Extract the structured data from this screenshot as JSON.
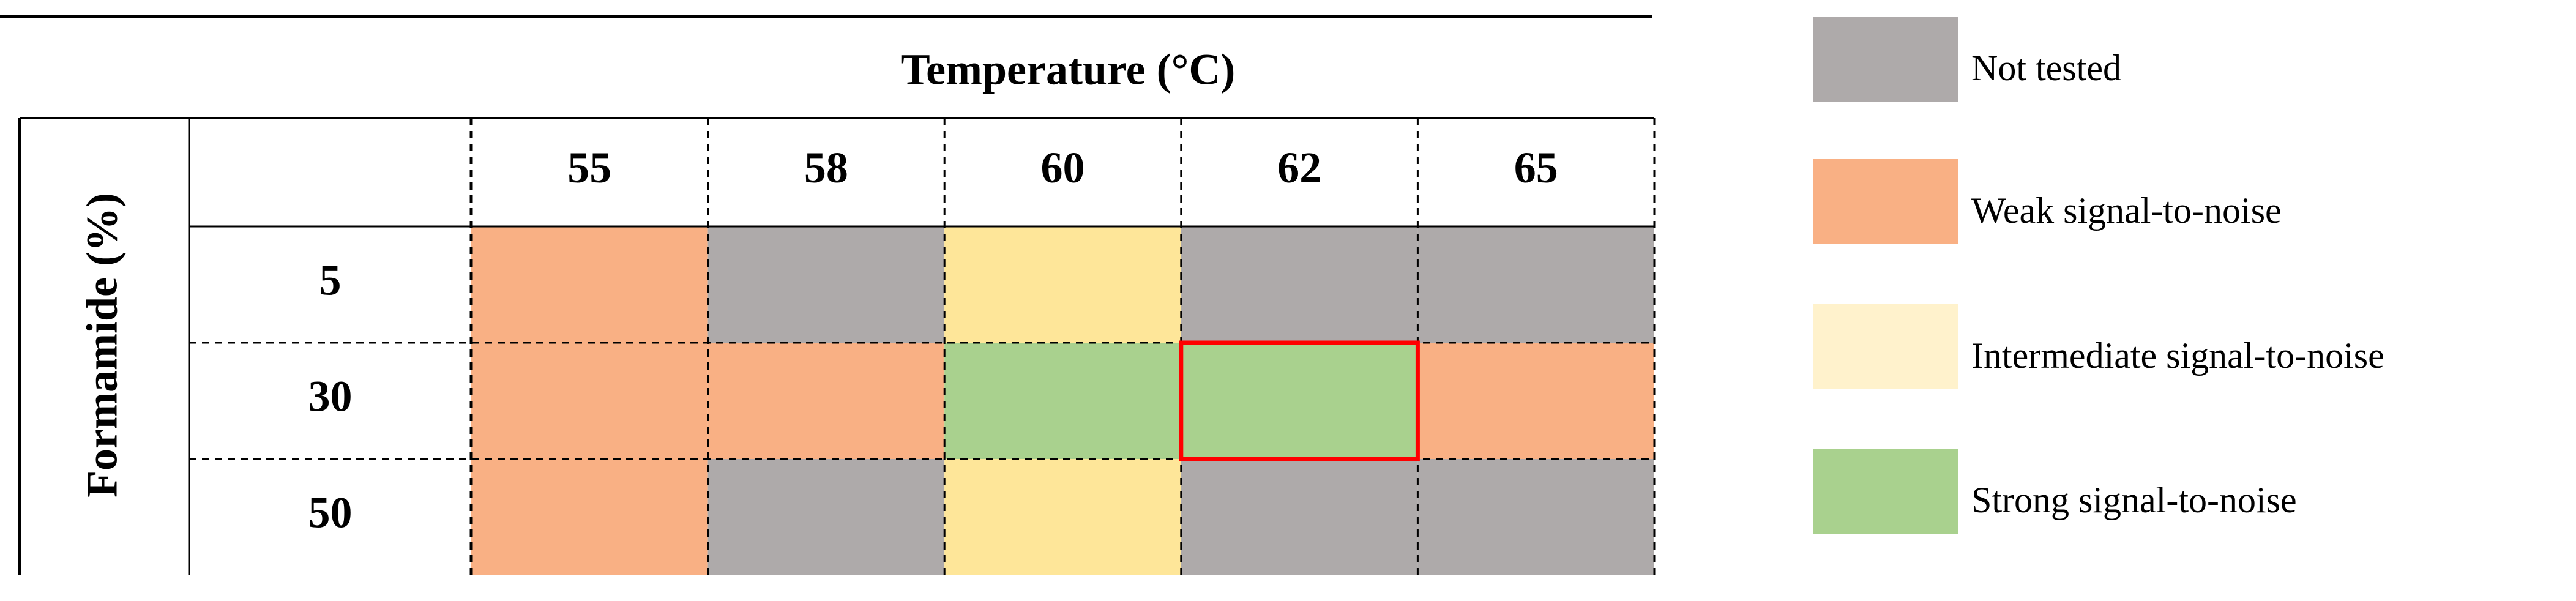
{
  "table": {
    "title": "Temperature (°C)",
    "row_axis_label": "Formamide (%)",
    "columns": [
      "55",
      "58",
      "60",
      "62",
      "65"
    ],
    "rows": [
      {
        "label": "5",
        "cells": [
          "#f9b084",
          "#aeaaaa",
          "#fee699",
          "#aeaaaa",
          "#aeaaaa"
        ]
      },
      {
        "label": "30",
        "cells": [
          "#f9b084",
          "#f9b084",
          "#a9d18e",
          "#a9d18e",
          "#f9b084"
        ]
      },
      {
        "label": "50",
        "cells": [
          "#f9b084",
          "#aeaaaa",
          "#fee699",
          "#aeaaaa",
          "#aeaaaa"
        ]
      }
    ],
    "highlight": {
      "row": 1,
      "column": 3,
      "color": "#ff0000"
    }
  },
  "legend": [
    {
      "label": "Not tested",
      "color": "#aeaaaa"
    },
    {
      "label": "Weak signal-to-noise",
      "color": "#f9b084"
    },
    {
      "label": "Intermediate signal-to-noise",
      "color": "#fff2cc"
    },
    {
      "label": "Strong signal-to-noise",
      "color": "#a9d18e"
    }
  ]
}
